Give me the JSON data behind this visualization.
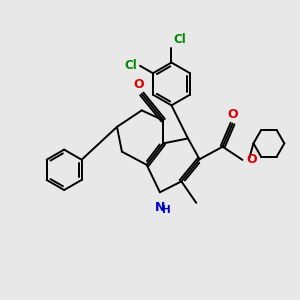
{
  "bg_color": "#e8e8e8",
  "bond_color": "#000000",
  "n_color": "#0000cc",
  "o_color": "#dd0000",
  "cl_color": "#008800",
  "line_width": 1.4,
  "font_size": 8.5,
  "fig_w": 3.0,
  "fig_h": 3.0,
  "dpi": 100,
  "xlim": [
    0,
    10
  ],
  "ylim": [
    0,
    10
  ]
}
